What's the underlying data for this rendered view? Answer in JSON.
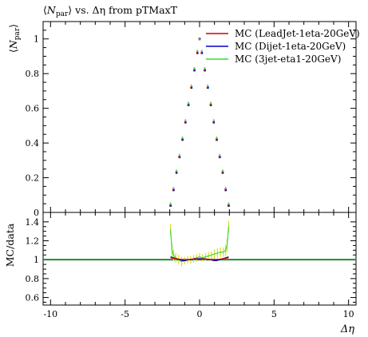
{
  "chart_data": [
    {
      "type": "scatter",
      "title": "⟨N_par⟩ vs. Δη from pTMaxT",
      "title_parts": {
        "main": "N",
        "sub": "par",
        "rest": " vs. Δη from pTMaxT"
      },
      "ylabel": "⟨N_par⟩",
      "ylabel_parts": {
        "main": "N",
        "sub": "par"
      },
      "xlim": [
        -10.5,
        10.5
      ],
      "ylim": [
        0,
        1.1
      ],
      "yticks": [
        0,
        0.2,
        0.4,
        0.6,
        0.8,
        1
      ],
      "ytick_labels": [
        "0",
        "0.2",
        "0.4",
        "0.6",
        "0.8",
        "1"
      ],
      "legend_position": "top-right",
      "grid": false,
      "series": [
        {
          "name": "MC (LeadJet-1eta-20GeV)",
          "color": "#cc0000",
          "x": [
            -1.95,
            -1.75,
            -1.55,
            -1.35,
            -1.15,
            -0.95,
            -0.75,
            -0.55,
            -0.35,
            -0.15,
            0.0,
            0.15,
            0.35,
            0.55,
            0.75,
            0.95,
            1.15,
            1.35,
            1.55,
            1.75,
            1.95
          ],
          "y": [
            0.04,
            0.13,
            0.23,
            0.32,
            0.42,
            0.52,
            0.62,
            0.72,
            0.82,
            0.92,
            1.0,
            0.92,
            0.82,
            0.72,
            0.62,
            0.52,
            0.42,
            0.32,
            0.23,
            0.13,
            0.04
          ]
        },
        {
          "name": "MC (Dijet-1eta-20GeV)",
          "color": "#0000cc",
          "x": [
            -1.95,
            -1.75,
            -1.55,
            -1.35,
            -1.15,
            -0.95,
            -0.75,
            -0.55,
            -0.35,
            -0.15,
            0.0,
            0.15,
            0.35,
            0.55,
            0.75,
            0.95,
            1.15,
            1.35,
            1.55,
            1.75,
            1.95
          ],
          "y": [
            0.04,
            0.13,
            0.23,
            0.32,
            0.42,
            0.52,
            0.62,
            0.72,
            0.82,
            0.92,
            1.0,
            0.92,
            0.82,
            0.72,
            0.62,
            0.52,
            0.42,
            0.32,
            0.23,
            0.13,
            0.04
          ]
        },
        {
          "name": "MC (3jet-eta1-20GeV)",
          "color": "#33dd33",
          "x": [
            -1.95,
            -1.75,
            -1.55,
            -1.35,
            -1.15,
            -0.95,
            -0.75,
            -0.55,
            -0.35,
            -0.15,
            0.0,
            0.15,
            0.35,
            0.55,
            0.75,
            0.95,
            1.15,
            1.35,
            1.55,
            1.75,
            1.95
          ],
          "y": [
            0.05,
            0.14,
            0.24,
            0.33,
            0.43,
            0.53,
            0.63,
            0.73,
            0.83,
            0.93,
            1.0,
            0.93,
            0.83,
            0.73,
            0.63,
            0.53,
            0.43,
            0.33,
            0.24,
            0.14,
            0.05
          ]
        }
      ]
    },
    {
      "type": "line",
      "ylabel": "MC/data",
      "xlabel": "Δη",
      "xlim": [
        -10.5,
        10.5
      ],
      "ylim": [
        0.52,
        1.5
      ],
      "xticks": [
        -10,
        -5,
        0,
        5,
        10
      ],
      "xtick_labels": [
        "-10",
        "-5",
        "0",
        "5",
        "10"
      ],
      "yticks": [
        0.6,
        0.8,
        1,
        1.2,
        1.4
      ],
      "ytick_labels": [
        "0.6",
        "0.8",
        "1",
        "1.2",
        "1.4"
      ],
      "reference_line": {
        "y": 1.0,
        "color": "#228833"
      },
      "series": [
        {
          "name": "MC (LeadJet-1eta-20GeV)",
          "color": "#cc0000",
          "x": [
            -1.95,
            -1.55,
            -1.15,
            -0.75,
            -0.35,
            0.0,
            0.35,
            0.75,
            1.15,
            1.55,
            1.95
          ],
          "y": [
            1.02,
            1.01,
            1.0,
            1.0,
            1.01,
            1.0,
            1.01,
            1.0,
            1.0,
            1.01,
            1.02
          ]
        },
        {
          "name": "MC (Dijet-1eta-20GeV)",
          "color": "#0000cc",
          "x": [
            -1.95,
            -1.75,
            -1.55,
            -1.35,
            -1.15,
            -0.95,
            -0.75,
            -0.55,
            -0.35,
            -0.15,
            0.0,
            0.15,
            0.35,
            0.55,
            0.75,
            0.95,
            1.15,
            1.35,
            1.55,
            1.75,
            1.95
          ],
          "y": [
            1.03,
            1.02,
            1.01,
            1.0,
            0.99,
            0.99,
            1.0,
            1.0,
            1.01,
            1.01,
            1.01,
            1.01,
            1.01,
            1.0,
            1.0,
            0.99,
            0.99,
            1.0,
            1.01,
            1.02,
            1.03
          ]
        },
        {
          "name": "MC (3jet-eta1-20GeV)",
          "color": "#33dd33",
          "x": [
            -1.95,
            -1.85,
            -1.75,
            -1.6,
            -1.4,
            -1.2,
            -1.0,
            -0.8,
            -0.6,
            -0.4,
            -0.2,
            0.0,
            0.2,
            0.4,
            0.6,
            0.8,
            1.0,
            1.2,
            1.4,
            1.6,
            1.75,
            1.85,
            1.95
          ],
          "y": [
            1.32,
            1.1,
            1.05,
            1.02,
            1.0,
            0.98,
            0.99,
            1.0,
            1.0,
            1.01,
            1.02,
            1.03,
            1.02,
            1.03,
            1.04,
            1.05,
            1.06,
            1.07,
            1.08,
            1.08,
            1.1,
            1.15,
            1.35
          ],
          "err": [
            0.06,
            0.07,
            0.06,
            0.05,
            0.05,
            0.05,
            0.04,
            0.04,
            0.04,
            0.04,
            0.04,
            0.04,
            0.04,
            0.04,
            0.04,
            0.04,
            0.05,
            0.05,
            0.05,
            0.05,
            0.06,
            0.07,
            0.06
          ]
        }
      ]
    }
  ]
}
